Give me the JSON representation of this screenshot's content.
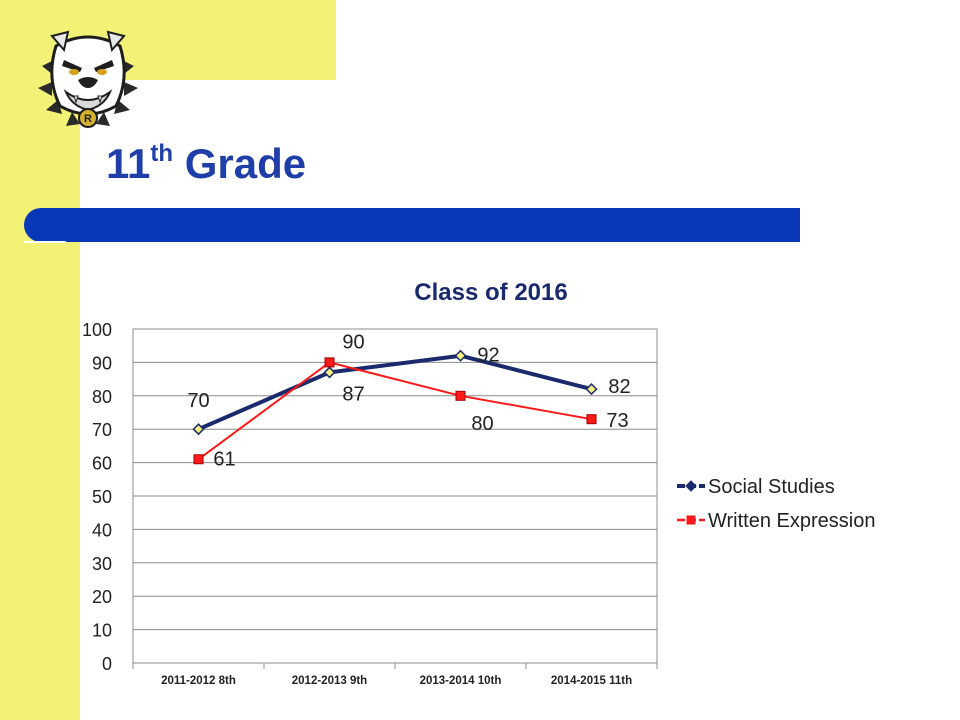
{
  "slide": {
    "title_main": "11",
    "title_sup": "th",
    "title_rest": "Grade",
    "logo_icon": "bulldog-mascot-icon",
    "logo_letter": "R"
  },
  "colors": {
    "sidebar": "#f2f276",
    "accent_bar": "#0838b8",
    "title": "#1f3ea8",
    "series_social_studies": "#1a2a6c",
    "series_written_expression": "#ff1a1a"
  },
  "chart_data": {
    "type": "line",
    "title": "Class of 2016",
    "categories": [
      "2011-2012 8th",
      "2012-2013 9th",
      "2013-2014 10th",
      "2014-2015 11th"
    ],
    "ylim": [
      0,
      100
    ],
    "yticks": [
      0,
      10,
      20,
      30,
      40,
      50,
      60,
      70,
      80,
      90,
      100
    ],
    "grid": true,
    "legend_position": "right",
    "series": [
      {
        "name": "Social Studies",
        "values": [
          70,
          87,
          92,
          82
        ],
        "labels": [
          "70",
          "87",
          "92",
          "82"
        ],
        "marker": "diamond"
      },
      {
        "name": "Written Expression",
        "values": [
          61,
          90,
          80,
          73
        ],
        "labels": [
          "61",
          "90",
          "80",
          "73"
        ],
        "marker": "square"
      }
    ]
  }
}
